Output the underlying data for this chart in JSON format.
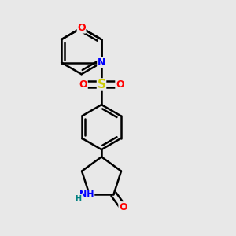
{
  "background_color": "#e8e8e8",
  "bond_color": "#000000",
  "bond_width": 1.8,
  "N_color": "#0000FF",
  "O_color": "#FF0000",
  "S_color": "#CCCC00",
  "H_color": "#008080",
  "font_size": 9,
  "fig_width": 3.0,
  "fig_height": 3.0,
  "xlim": [
    0.1,
    0.9
  ],
  "ylim": [
    0.02,
    0.98
  ]
}
